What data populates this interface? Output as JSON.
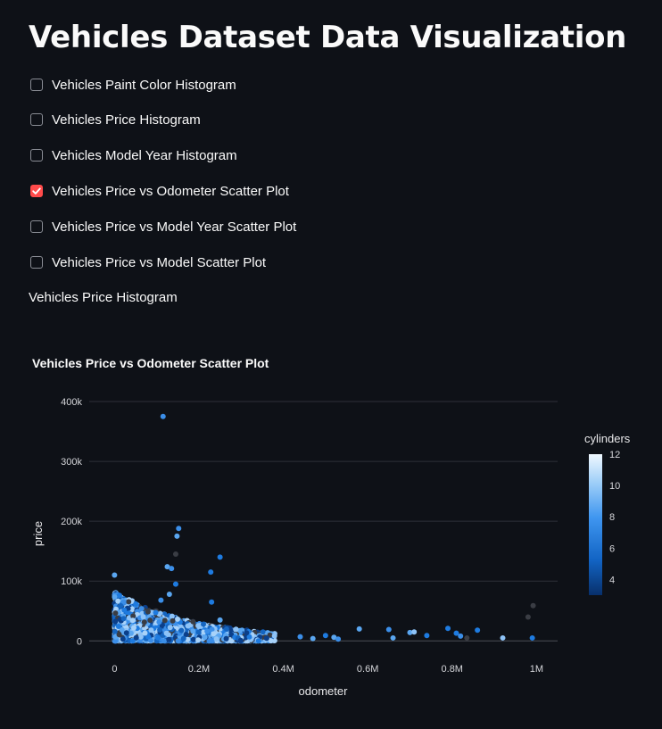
{
  "page": {
    "title": "Vehicles Dataset Data Visualization"
  },
  "checkboxes": [
    {
      "label": "Vehicles Paint Color Histogram",
      "checked": false
    },
    {
      "label": "Vehicles Price Histogram",
      "checked": false
    },
    {
      "label": "Vehicles Model Year Histogram",
      "checked": false
    },
    {
      "label": "Vehicles Price vs Odometer Scatter Plot",
      "checked": true
    },
    {
      "label": "Vehicles Price vs Model Year Scatter Plot",
      "checked": false
    },
    {
      "label": "Vehicles Price vs Model Scatter Plot",
      "checked": false
    }
  ],
  "note": "Vehicles Price Histogram",
  "colors": {
    "accent": "#ff4b4b",
    "background": "#0e1117"
  },
  "chart_data": {
    "type": "scatter",
    "title": "Vehicles Price vs Odometer Scatter Plot",
    "xlabel": "odometer",
    "ylabel": "price",
    "xlim": [
      -60000,
      1050000
    ],
    "ylim": [
      -10000,
      400000
    ],
    "xticks": [
      0,
      200000,
      400000,
      600000,
      800000,
      1000000
    ],
    "xtick_labels": [
      "0",
      "0.2M",
      "0.4M",
      "0.6M",
      "0.8M",
      "1M"
    ],
    "yticks": [
      0,
      100000,
      200000,
      300000,
      400000
    ],
    "ytick_labels": [
      "0",
      "100k",
      "200k",
      "300k",
      "400k"
    ],
    "colorbar": {
      "title": "cylinders",
      "min": 3,
      "max": 12,
      "ticks": [
        4,
        6,
        8,
        10,
        12
      ]
    },
    "outliers": [
      {
        "x": 115000,
        "y": 375000,
        "c": 7
      },
      {
        "x": 152000,
        "y": 188000,
        "c": 7
      },
      {
        "x": 148000,
        "y": 175000,
        "c": 8
      },
      {
        "x": 145000,
        "y": 145000,
        "c": 0
      },
      {
        "x": 125000,
        "y": 124000,
        "c": 8
      },
      {
        "x": 135000,
        "y": 121000,
        "c": 7
      },
      {
        "x": 250000,
        "y": 140000,
        "c": 6
      },
      {
        "x": 228000,
        "y": 115000,
        "c": 6
      },
      {
        "x": 0,
        "y": 110000,
        "c": 8
      },
      {
        "x": 145000,
        "y": 95000,
        "c": 6
      },
      {
        "x": 130000,
        "y": 78000,
        "c": 8
      },
      {
        "x": 230000,
        "y": 65000,
        "c": 6
      },
      {
        "x": 110000,
        "y": 68000,
        "c": 7
      },
      {
        "x": 250000,
        "y": 35000,
        "c": 8
      },
      {
        "x": 580000,
        "y": 20000,
        "c": 8
      },
      {
        "x": 650000,
        "y": 19000,
        "c": 7
      },
      {
        "x": 660000,
        "y": 5000,
        "c": 8
      },
      {
        "x": 700000,
        "y": 14000,
        "c": 8
      },
      {
        "x": 710000,
        "y": 15000,
        "c": 9
      },
      {
        "x": 740000,
        "y": 9000,
        "c": 6
      },
      {
        "x": 790000,
        "y": 21000,
        "c": 6
      },
      {
        "x": 810000,
        "y": 13000,
        "c": 6
      },
      {
        "x": 820000,
        "y": 8000,
        "c": 7
      },
      {
        "x": 835000,
        "y": 5000,
        "c": 0
      },
      {
        "x": 860000,
        "y": 18000,
        "c": 6
      },
      {
        "x": 920000,
        "y": 5000,
        "c": 9
      },
      {
        "x": 990000,
        "y": 5000,
        "c": 6
      },
      {
        "x": 980000,
        "y": 40000,
        "c": 0
      },
      {
        "x": 992000,
        "y": 59000,
        "c": 0
      },
      {
        "x": 440000,
        "y": 7000,
        "c": 7
      },
      {
        "x": 470000,
        "y": 4000,
        "c": 8
      },
      {
        "x": 500000,
        "y": 9000,
        "c": 6
      },
      {
        "x": 520000,
        "y": 6000,
        "c": 8
      },
      {
        "x": 530000,
        "y": 3000,
        "c": 7
      }
    ]
  }
}
